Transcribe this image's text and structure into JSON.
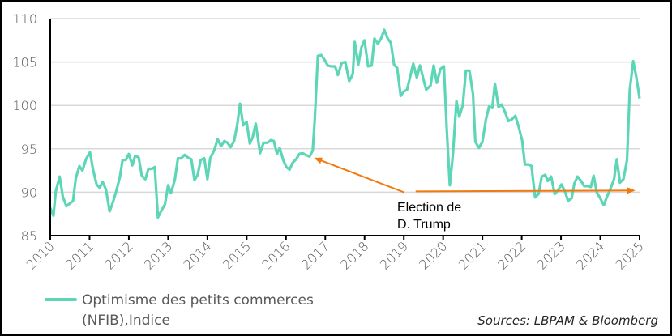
{
  "chart_data": {
    "type": "line",
    "title": "",
    "xlabel": "",
    "ylabel": "",
    "xlim": [
      2010,
      2025
    ],
    "ylim": [
      85,
      110
    ],
    "x_ticks": [
      "2010",
      "2011",
      "2012",
      "2013",
      "2014",
      "2015",
      "2016",
      "2017",
      "2018",
      "2019",
      "2020",
      "2021",
      "2022",
      "2023",
      "2024",
      "2025"
    ],
    "y_ticks": [
      "85",
      "90",
      "95",
      "100",
      "105",
      "110"
    ],
    "grid": "horizontal",
    "legend_position": "bottom-left",
    "series": [
      {
        "name": "Optimisme des petits commerces (NFIB),Indice",
        "legend_lines": [
          "Optimisme des petits commerces",
          "(NFIB),Indice"
        ],
        "color": "#5dd6b8",
        "points": [
          [
            2010.0,
            88.2
          ],
          [
            2010.08,
            87.3
          ],
          [
            2010.14,
            90.1
          ],
          [
            2010.24,
            91.8
          ],
          [
            2010.32,
            89.5
          ],
          [
            2010.41,
            88.4
          ],
          [
            2010.58,
            89.0
          ],
          [
            2010.65,
            91.6
          ],
          [
            2010.74,
            93.0
          ],
          [
            2010.82,
            92.5
          ],
          [
            2010.91,
            93.8
          ],
          [
            2011.01,
            94.6
          ],
          [
            2011.09,
            92.6
          ],
          [
            2011.18,
            90.9
          ],
          [
            2011.26,
            90.5
          ],
          [
            2011.33,
            91.2
          ],
          [
            2011.42,
            90.3
          ],
          [
            2011.51,
            87.8
          ],
          [
            2011.6,
            88.9
          ],
          [
            2011.69,
            90.3
          ],
          [
            2011.77,
            91.7
          ],
          [
            2011.84,
            93.7
          ],
          [
            2011.92,
            93.7
          ],
          [
            2012.0,
            94.4
          ],
          [
            2012.09,
            93.1
          ],
          [
            2012.16,
            94.2
          ],
          [
            2012.25,
            94.0
          ],
          [
            2012.33,
            91.9
          ],
          [
            2012.42,
            91.5
          ],
          [
            2012.5,
            92.7
          ],
          [
            2012.59,
            92.7
          ],
          [
            2012.66,
            92.9
          ],
          [
            2012.74,
            87.1
          ],
          [
            2012.83,
            87.9
          ],
          [
            2012.92,
            88.6
          ],
          [
            2013.0,
            90.8
          ],
          [
            2013.07,
            89.9
          ],
          [
            2013.17,
            91.4
          ],
          [
            2013.25,
            93.9
          ],
          [
            2013.33,
            93.9
          ],
          [
            2013.42,
            94.3
          ],
          [
            2013.5,
            94.0
          ],
          [
            2013.59,
            93.8
          ],
          [
            2013.67,
            91.4
          ],
          [
            2013.75,
            92.0
          ],
          [
            2013.83,
            93.7
          ],
          [
            2013.92,
            93.9
          ],
          [
            2014.0,
            91.5
          ],
          [
            2014.07,
            93.9
          ],
          [
            2014.17,
            94.8
          ],
          [
            2014.26,
            96.1
          ],
          [
            2014.35,
            95.3
          ],
          [
            2014.43,
            95.9
          ],
          [
            2014.51,
            95.7
          ],
          [
            2014.59,
            95.2
          ],
          [
            2014.68,
            95.9
          ],
          [
            2014.76,
            97.8
          ],
          [
            2014.83,
            100.2
          ],
          [
            2014.91,
            97.7
          ],
          [
            2015.0,
            98.1
          ],
          [
            2015.08,
            95.6
          ],
          [
            2015.15,
            96.3
          ],
          [
            2015.23,
            97.9
          ],
          [
            2015.34,
            94.5
          ],
          [
            2015.43,
            95.7
          ],
          [
            2015.53,
            95.7
          ],
          [
            2015.62,
            96.0
          ],
          [
            2015.69,
            95.9
          ],
          [
            2015.77,
            94.4
          ],
          [
            2015.84,
            95.1
          ],
          [
            2015.93,
            93.7
          ],
          [
            2016.01,
            92.9
          ],
          [
            2016.09,
            92.6
          ],
          [
            2016.17,
            93.4
          ],
          [
            2016.26,
            93.8
          ],
          [
            2016.34,
            94.4
          ],
          [
            2016.42,
            94.5
          ],
          [
            2016.5,
            94.3
          ],
          [
            2016.6,
            94.1
          ],
          [
            2016.68,
            94.8
          ],
          [
            2016.73,
            98.2
          ],
          [
            2016.81,
            105.7
          ],
          [
            2016.9,
            105.8
          ],
          [
            2016.99,
            105.2
          ],
          [
            2017.06,
            104.6
          ],
          [
            2017.15,
            104.5
          ],
          [
            2017.25,
            104.5
          ],
          [
            2017.32,
            103.5
          ],
          [
            2017.42,
            104.9
          ],
          [
            2017.51,
            105.0
          ],
          [
            2017.61,
            102.8
          ],
          [
            2017.7,
            103.6
          ],
          [
            2017.75,
            107.3
          ],
          [
            2017.84,
            104.7
          ],
          [
            2017.92,
            106.7
          ],
          [
            2018.0,
            107.5
          ],
          [
            2018.09,
            104.5
          ],
          [
            2018.18,
            104.6
          ],
          [
            2018.25,
            107.7
          ],
          [
            2018.34,
            107.1
          ],
          [
            2018.42,
            107.7
          ],
          [
            2018.5,
            108.7
          ],
          [
            2018.59,
            107.7
          ],
          [
            2018.67,
            107.2
          ],
          [
            2018.75,
            104.7
          ],
          [
            2018.83,
            104.3
          ],
          [
            2018.92,
            101.1
          ],
          [
            2019.0,
            101.6
          ],
          [
            2019.08,
            101.8
          ],
          [
            2019.16,
            103.3
          ],
          [
            2019.24,
            104.8
          ],
          [
            2019.33,
            103.2
          ],
          [
            2019.41,
            104.6
          ],
          [
            2019.5,
            103.0
          ],
          [
            2019.57,
            101.8
          ],
          [
            2019.68,
            102.3
          ],
          [
            2019.76,
            104.6
          ],
          [
            2019.84,
            102.6
          ],
          [
            2019.93,
            104.2
          ],
          [
            2020.02,
            104.5
          ],
          [
            2020.09,
            97.5
          ],
          [
            2020.17,
            90.8
          ],
          [
            2020.25,
            94.4
          ],
          [
            2020.34,
            100.5
          ],
          [
            2020.41,
            98.7
          ],
          [
            2020.5,
            100.0
          ],
          [
            2020.58,
            104.0
          ],
          [
            2020.67,
            104.0
          ],
          [
            2020.76,
            101.3
          ],
          [
            2020.82,
            95.8
          ],
          [
            2020.91,
            95.1
          ],
          [
            2021.0,
            95.8
          ],
          [
            2021.09,
            98.4
          ],
          [
            2021.17,
            99.9
          ],
          [
            2021.25,
            99.7
          ],
          [
            2021.32,
            102.5
          ],
          [
            2021.41,
            99.8
          ],
          [
            2021.49,
            100.1
          ],
          [
            2021.58,
            99.2
          ],
          [
            2021.66,
            98.2
          ],
          [
            2021.75,
            98.4
          ],
          [
            2021.84,
            98.8
          ],
          [
            2021.93,
            97.4
          ],
          [
            2022.01,
            96.0
          ],
          [
            2022.08,
            93.2
          ],
          [
            2022.17,
            93.2
          ],
          [
            2022.25,
            93.0
          ],
          [
            2022.34,
            89.4
          ],
          [
            2022.43,
            89.8
          ],
          [
            2022.51,
            91.8
          ],
          [
            2022.6,
            92.0
          ],
          [
            2022.66,
            91.3
          ],
          [
            2022.75,
            91.8
          ],
          [
            2022.84,
            89.8
          ],
          [
            2022.92,
            90.2
          ],
          [
            2023.01,
            90.9
          ],
          [
            2023.1,
            90.1
          ],
          [
            2023.18,
            89.0
          ],
          [
            2023.27,
            89.3
          ],
          [
            2023.34,
            91.0
          ],
          [
            2023.42,
            91.8
          ],
          [
            2023.51,
            91.3
          ],
          [
            2023.59,
            90.7
          ],
          [
            2023.68,
            90.7
          ],
          [
            2023.76,
            90.6
          ],
          [
            2023.83,
            91.9
          ],
          [
            2023.91,
            90.0
          ],
          [
            2024.0,
            89.3
          ],
          [
            2024.09,
            88.5
          ],
          [
            2024.17,
            89.5
          ],
          [
            2024.26,
            90.4
          ],
          [
            2024.35,
            91.5
          ],
          [
            2024.42,
            93.8
          ],
          [
            2024.5,
            91.1
          ],
          [
            2024.59,
            91.5
          ],
          [
            2024.68,
            93.7
          ],
          [
            2024.75,
            101.8
          ],
          [
            2024.84,
            105.1
          ],
          [
            2024.92,
            103.2
          ],
          [
            2025.0,
            100.8
          ]
        ]
      }
    ],
    "annotations": [
      {
        "text_lines": [
          "Election de",
          "D. Trump"
        ],
        "color": "#f07a10",
        "arrows": [
          {
            "from": [
              2019.0,
              90.0
            ],
            "to": [
              2016.75,
              93.9
            ]
          },
          {
            "from": [
              2019.3,
              90.1
            ],
            "to": [
              2024.85,
              90.2
            ]
          }
        ]
      }
    ],
    "source": "Sources: LBPAM & Bloomberg"
  }
}
